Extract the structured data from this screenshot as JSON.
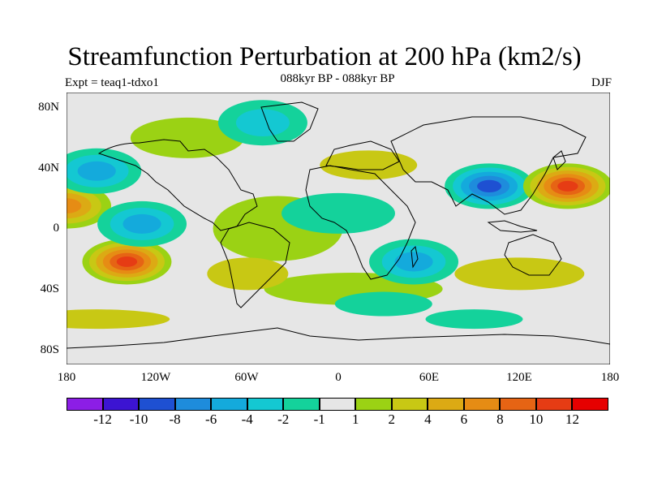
{
  "title": "Streamfunction Perturbation at 200 hPa (km2/s)",
  "subtitle": "088kyr BP - 088kyr BP",
  "left_string": "Expt = teaq1-tdxo1",
  "right_string": "DJF",
  "lat_labels": [
    "80N",
    "40N",
    "0",
    "40S",
    "80S"
  ],
  "lon_labels": [
    "180",
    "120W",
    "60W",
    "0",
    "60E",
    "120E",
    "180"
  ],
  "colorbar": {
    "labels": [
      "-12",
      "-10",
      "-8",
      "-6",
      "-4",
      "-2",
      "-1",
      "1",
      "2",
      "4",
      "6",
      "8",
      "10",
      "12"
    ],
    "colors": [
      "#8c1ee6",
      "#3c14d2",
      "#1e50d2",
      "#1e8cdc",
      "#14aadc",
      "#14c8d2",
      "#14d29b",
      "#e6e6e6",
      "#9bd214",
      "#c8c814",
      "#dcaa14",
      "#e68c14",
      "#e66414",
      "#e63c14",
      "#e60000"
    ]
  },
  "chart_data": {
    "type": "heatmap",
    "title": "Streamfunction Perturbation at 200 hPa (km2/s)",
    "subtitle": "088kyr BP - 088kyr BP",
    "season": "DJF",
    "experiment": "teaq1-tdxo1",
    "lon_range": [
      -180,
      180
    ],
    "lat_range": [
      -90,
      90
    ],
    "contour_levels": [
      -12,
      -10,
      -8,
      -6,
      -4,
      -2,
      -1,
      1,
      2,
      4,
      6,
      8,
      10,
      12
    ],
    "features": [
      {
        "name": "Siberia/Tibet low",
        "lon": 100,
        "lat": 28,
        "value": -9
      },
      {
        "name": "NW Pacific high",
        "lon": 152,
        "lat": 28,
        "value": 11
      },
      {
        "name": "South Pacific high",
        "lon": -140,
        "lat": -22,
        "value": 11
      },
      {
        "name": "Eastern Pacific west-edge high",
        "lon": -180,
        "lat": 15,
        "value": 7
      },
      {
        "name": "North Pacific low",
        "lon": -160,
        "lat": 38,
        "value": -6
      },
      {
        "name": "Central Pacific equatorial low",
        "lon": -130,
        "lat": 3,
        "value": -5
      },
      {
        "name": "Madagascar low",
        "lon": 50,
        "lat": -22,
        "value": -6
      },
      {
        "name": "Greenland/Arctic low",
        "lon": -50,
        "lat": 70,
        "value": -3
      }
    ]
  }
}
